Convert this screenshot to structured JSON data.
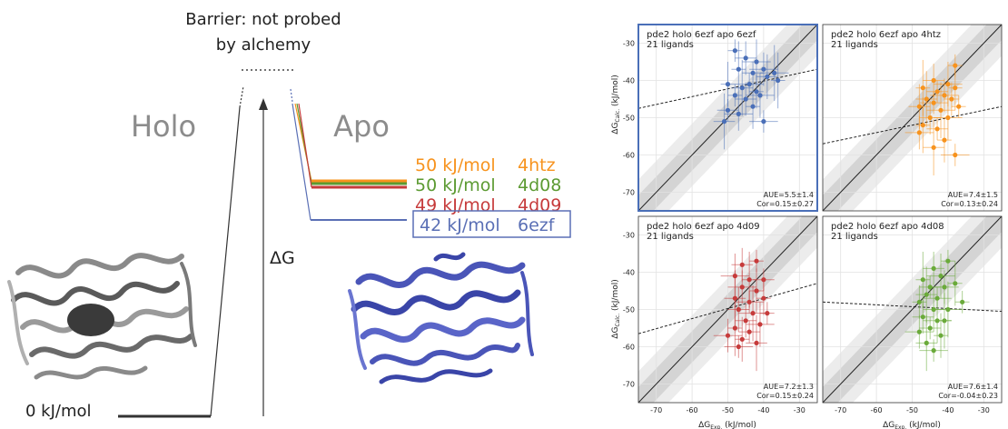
{
  "diagram": {
    "barrier_label_line1": "Barrier: not probed",
    "barrier_label_line2": "by alchemy",
    "holo_label": "Holo",
    "apo_label": "Apo",
    "delta_g_label": "ΔG",
    "zero_label": "0 kJ/mol",
    "colors": {
      "orange": "#f7931e",
      "green": "#5c9a32",
      "red": "#c63b3b",
      "blue": "#5a6fb5",
      "grey": "#9a9a9a"
    },
    "levels": [
      {
        "energy_label": "50 kJ/mol",
        "structure": "4htz",
        "color": "#f7931e"
      },
      {
        "energy_label": "50 kJ/mol",
        "structure": "4d08",
        "color": "#5c9a32"
      },
      {
        "energy_label": "49 kJ/mol",
        "structure": "4d09",
        "color": "#c63b3b"
      },
      {
        "energy_label": "42 kJ/mol",
        "structure": "6ezf",
        "color": "#5a6fb5",
        "boxed": true
      }
    ],
    "protein_icons": [
      {
        "name": "holo-protein-structure",
        "color": "#7a7a7a"
      },
      {
        "name": "apo-protein-structure",
        "color": "#4a55b8"
      }
    ]
  },
  "chart_data": [
    {
      "type": "scatter",
      "title_line1": "pde2 holo 6ezf apo 6ezf",
      "title_line2": "21 ligands",
      "color": "#4a6fb8",
      "highlighted": true,
      "aue": "AUE=5.5±1.4",
      "cor": "Cor=0.15±0.27",
      "trend": [
        [
          -75,
          -47.5
        ],
        [
          -25,
          -37
        ]
      ],
      "points": [
        [
          -48,
          -32
        ],
        [
          -45,
          -34
        ],
        [
          -42,
          -35
        ],
        [
          -47,
          -37
        ],
        [
          -43,
          -38
        ],
        [
          -40,
          -37
        ],
        [
          -50,
          -41
        ],
        [
          -46,
          -42
        ],
        [
          -44,
          -41
        ],
        [
          -42,
          -43
        ],
        [
          -39,
          -39
        ],
        [
          -37,
          -38
        ],
        [
          -48,
          -44
        ],
        [
          -45,
          -45
        ],
        [
          -41,
          -44
        ],
        [
          -36,
          -40
        ],
        [
          -50,
          -48
        ],
        [
          -47,
          -49
        ],
        [
          -43,
          -47
        ],
        [
          -51,
          -51
        ],
        [
          -40,
          -51
        ]
      ]
    },
    {
      "type": "scatter",
      "title_line1": "pde2 holo 6ezf apo 4htz",
      "title_line2": "21 ligands",
      "color": "#f7931e",
      "highlighted": false,
      "aue": "AUE=7.4±1.5",
      "cor": "Cor=0.13±0.24",
      "trend": [
        [
          -75,
          -57
        ],
        [
          -25,
          -47
        ]
      ],
      "points": [
        [
          -38,
          -36
        ],
        [
          -44,
          -40
        ],
        [
          -40,
          -41
        ],
        [
          -47,
          -42
        ],
        [
          -43,
          -43
        ],
        [
          -41,
          -44
        ],
        [
          -38,
          -42
        ],
        [
          -46,
          -45
        ],
        [
          -44,
          -46
        ],
        [
          -39,
          -45
        ],
        [
          -48,
          -47
        ],
        [
          -42,
          -48
        ],
        [
          -37,
          -47
        ],
        [
          -45,
          -50
        ],
        [
          -40,
          -50
        ],
        [
          -47,
          -52
        ],
        [
          -43,
          -53
        ],
        [
          -48,
          -54
        ],
        [
          -41,
          -56
        ],
        [
          -44,
          -58
        ],
        [
          -38,
          -60
        ]
      ]
    },
    {
      "type": "scatter",
      "title_line1": "pde2 holo 6ezf apo 4d09",
      "title_line2": "21 ligands",
      "color": "#c63b3b",
      "highlighted": false,
      "aue": "AUE=7.2±1.3",
      "cor": "Cor=0.15±0.24",
      "trend": [
        [
          -75,
          -56.5
        ],
        [
          -25,
          -43
        ]
      ],
      "points": [
        [
          -42,
          -37
        ],
        [
          -46,
          -38
        ],
        [
          -48,
          -41
        ],
        [
          -44,
          -42
        ],
        [
          -40,
          -42
        ],
        [
          -46,
          -44
        ],
        [
          -42,
          -45
        ],
        [
          -48,
          -47
        ],
        [
          -44,
          -48
        ],
        [
          -40,
          -47
        ],
        [
          -47,
          -50
        ],
        [
          -43,
          -51
        ],
        [
          -39,
          -51
        ],
        [
          -45,
          -53
        ],
        [
          -41,
          -54
        ],
        [
          -48,
          -55
        ],
        [
          -44,
          -56
        ],
        [
          -50,
          -57
        ],
        [
          -46,
          -58
        ],
        [
          -42,
          -59
        ],
        [
          -47,
          -60
        ]
      ]
    },
    {
      "type": "scatter",
      "title_line1": "pde2 holo 6ezf apo 4d08",
      "title_line2": "21 ligands",
      "color": "#6aaa3a",
      "highlighted": false,
      "aue": "AUE=7.6±1.4",
      "cor": "Cor=-0.04±0.23",
      "trend": [
        [
          -75,
          -48
        ],
        [
          -25,
          -50.5
        ]
      ],
      "points": [
        [
          -40,
          -37
        ],
        [
          -44,
          -39
        ],
        [
          -42,
          -41
        ],
        [
          -47,
          -42
        ],
        [
          -45,
          -44
        ],
        [
          -41,
          -44
        ],
        [
          -38,
          -43
        ],
        [
          -46,
          -46
        ],
        [
          -43,
          -47
        ],
        [
          -48,
          -48
        ],
        [
          -44,
          -50
        ],
        [
          -40,
          -50
        ],
        [
          -36,
          -48
        ],
        [
          -47,
          -52
        ],
        [
          -43,
          -53
        ],
        [
          -41,
          -53
        ],
        [
          -45,
          -55
        ],
        [
          -48,
          -56
        ],
        [
          -42,
          -57
        ],
        [
          -46,
          -59
        ],
        [
          -44,
          -61
        ]
      ]
    }
  ],
  "axes": {
    "xlabel": "ΔG",
    "xlabel_sub": "Exp.",
    "xlabel_unit": " (kJ/mol)",
    "ylabel": "ΔG",
    "ylabel_sub": "Calc.",
    "ylabel_unit": " (kJ/mol)",
    "xlim": [
      -75,
      -25
    ],
    "ylim": [
      -75,
      -25
    ],
    "xticks": [
      -70,
      -60,
      -50,
      -40,
      -30
    ],
    "yticks": [
      -70,
      -60,
      -50,
      -40,
      -30
    ],
    "grid": true,
    "bands": [
      {
        "width": 8.4,
        "color": "#ececec"
      },
      {
        "width": 4.2,
        "color": "#d4d4d4"
      }
    ]
  }
}
